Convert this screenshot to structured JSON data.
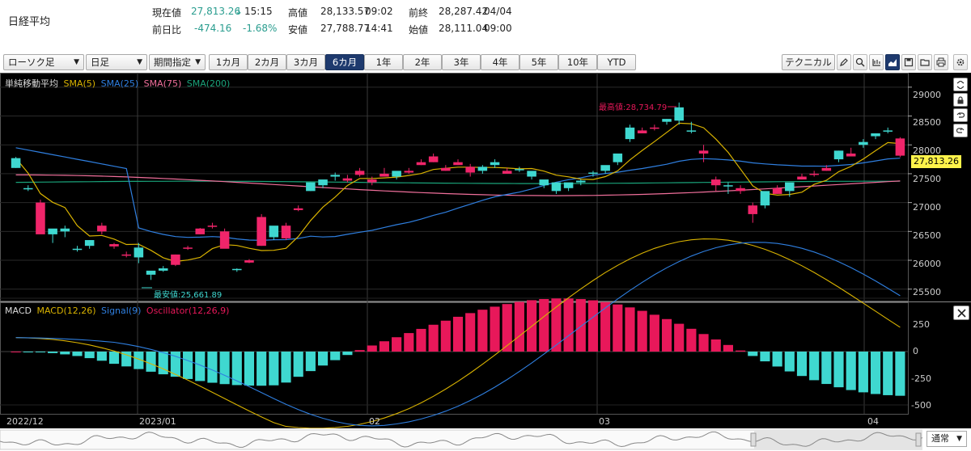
{
  "header": {
    "title": "日経平均",
    "current_label": "現在値",
    "current_value": "27,813.26",
    "current_arrow": "↓",
    "current_time": "15:15",
    "change_label": "前日比",
    "change_value": "-474.16",
    "change_pct": "-1.68%",
    "high_label": "高値",
    "high_value": "28,133.57",
    "high_time": "09:02",
    "low_label": "安値",
    "low_value": "27,788.77",
    "low_time": "14:41",
    "prev_label": "前終",
    "prev_value": "28,287.42",
    "prev_date": "04/04",
    "open_label": "始値",
    "open_value": "28,111.04",
    "open_time": "09:00"
  },
  "toolbar": {
    "chart_type": "ローソク足",
    "interval": "日足",
    "period_select": "期間指定",
    "ranges": [
      "1カ月",
      "2カ月",
      "3カ月",
      "6カ月",
      "1年",
      "2年",
      "3年",
      "4年",
      "5年",
      "10年",
      "YTD"
    ],
    "active_range": "6カ月",
    "technical": "テクニカル",
    "icons": [
      "pencil-icon",
      "zoom-icon",
      "bar-chart-icon",
      "area-chart-icon",
      "save-icon",
      "folder-icon",
      "print-icon",
      "settings-icon"
    ]
  },
  "price_panel": {
    "legend_title": "単純移動平均",
    "legend": [
      {
        "name": "SMA(5)",
        "color": "#d9b300"
      },
      {
        "name": "SMA(25)",
        "color": "#2f7fe0"
      },
      {
        "name": "SMA(75)",
        "color": "#f06f9b"
      },
      {
        "name": "SMA(200)",
        "color": "#1aa37a"
      }
    ],
    "y_ticks": [
      "29000",
      "28500",
      "28000",
      "27500",
      "27000",
      "26500",
      "26000",
      "25500"
    ],
    "max_label": "最高値:28,734.79",
    "min_label": "最安値:25,661.89",
    "last_price_tag": "27,813.26"
  },
  "macd_panel": {
    "legend_title": "MACD",
    "legend": [
      {
        "name": "MACD(12,26)",
        "color": "#d9b300"
      },
      {
        "name": "Signal(9)",
        "color": "#2f7fe0"
      },
      {
        "name": "Oscillator(12,26,9)",
        "color": "#e8185a"
      }
    ],
    "y_ticks": [
      "250",
      "0",
      "-250",
      "-500"
    ]
  },
  "x_axis": [
    "2022/12",
    "2023/01",
    "02",
    "03",
    "04"
  ],
  "navigator": {
    "mode": "通常"
  },
  "chart_data": {
    "type": "candlestick",
    "x": [
      "2022/12",
      "2023/01",
      "02",
      "03",
      "04"
    ],
    "ylim": [
      25300,
      29250
    ],
    "candles_ohlc": [
      [
        27600,
        27790,
        27600,
        27770
      ],
      [
        27250,
        27300,
        27200,
        27250
      ],
      [
        27000,
        27050,
        26500,
        26450
      ],
      [
        26450,
        26500,
        26300,
        26550
      ],
      [
        26500,
        26600,
        26400,
        26550
      ],
      [
        26200,
        26250,
        26150,
        26200
      ],
      [
        26250,
        26350,
        26200,
        26350
      ],
      [
        26600,
        26650,
        26450,
        26500
      ],
      [
        26280,
        26300,
        26200,
        26240
      ],
      [
        26100,
        26150,
        26050,
        26080
      ],
      [
        26050,
        26300,
        25950,
        26220
      ],
      [
        25750,
        25800,
        25660,
        25820
      ],
      [
        25820,
        25900,
        25800,
        25860
      ],
      [
        26100,
        26100,
        25900,
        25920
      ],
      [
        26220,
        26250,
        26180,
        26200
      ],
      [
        26550,
        26560,
        26450,
        26450
      ],
      [
        26600,
        26650,
        26550,
        26580
      ],
      [
        26500,
        26550,
        26350,
        26200
      ],
      [
        25830,
        25860,
        25800,
        25850
      ],
      [
        26000,
        26020,
        25950,
        25960
      ],
      [
        26750,
        26800,
        26250,
        26250
      ],
      [
        26400,
        26450,
        26350,
        26600
      ],
      [
        26600,
        26650,
        26350,
        26380
      ],
      [
        26900,
        26950,
        26850,
        26870
      ],
      [
        27200,
        27350,
        27200,
        27350
      ],
      [
        27300,
        27350,
        27250,
        27400
      ],
      [
        27450,
        27520,
        27380,
        27480
      ],
      [
        27420,
        27480,
        27350,
        27380
      ],
      [
        27550,
        27600,
        27450,
        27480
      ],
      [
        27400,
        27450,
        27300,
        27350
      ],
      [
        27500,
        27600,
        27450,
        27450
      ],
      [
        27450,
        27500,
        27400,
        27550
      ],
      [
        27550,
        27600,
        27500,
        27520
      ],
      [
        27700,
        27750,
        27650,
        27650
      ],
      [
        27800,
        27850,
        27700,
        27700
      ],
      [
        27600,
        27650,
        27550,
        27550
      ],
      [
        27700,
        27750,
        27650,
        27650
      ],
      [
        27620,
        27670,
        27450,
        27520
      ],
      [
        27550,
        27650,
        27500,
        27620
      ],
      [
        27650,
        27750,
        27600,
        27700
      ],
      [
        27550,
        27600,
        27500,
        27500
      ],
      [
        27560,
        27620,
        27530,
        27580
      ],
      [
        27450,
        27500,
        27400,
        27550
      ],
      [
        27300,
        27350,
        27250,
        27400
      ],
      [
        27200,
        27250,
        27150,
        27350
      ],
      [
        27250,
        27300,
        27200,
        27350
      ],
      [
        27350,
        27400,
        27300,
        27380
      ],
      [
        27500,
        27550,
        27450,
        27520
      ],
      [
        27550,
        27600,
        27500,
        27650
      ],
      [
        27700,
        27750,
        27650,
        27850
      ],
      [
        28100,
        28350,
        28050,
        28300
      ],
      [
        28250,
        28300,
        28200,
        28200
      ],
      [
        28300,
        28350,
        28250,
        28280
      ],
      [
        28400,
        28450,
        28350,
        28450
      ],
      [
        28420,
        28734,
        28350,
        28650
      ],
      [
        28250,
        28400,
        28200,
        28250
      ],
      [
        27900,
        28000,
        27700,
        27850
      ],
      [
        27400,
        27450,
        27200,
        27300
      ],
      [
        27300,
        27350,
        27150,
        27300
      ],
      [
        27250,
        27300,
        27150,
        27200
      ],
      [
        26950,
        27000,
        26650,
        26800
      ],
      [
        26950,
        27000,
        26900,
        27200
      ],
      [
        27250,
        27300,
        27150,
        27150
      ],
      [
        27200,
        27250,
        27100,
        27350
      ],
      [
        27450,
        27500,
        27400,
        27400
      ],
      [
        27500,
        27550,
        27450,
        27480
      ],
      [
        27600,
        27650,
        27550,
        27550
      ],
      [
        27750,
        27900,
        27700,
        27900
      ],
      [
        27850,
        27950,
        27800,
        27800
      ],
      [
        28000,
        28100,
        27950,
        28050
      ],
      [
        28150,
        28200,
        28100,
        28200
      ],
      [
        28250,
        28300,
        28200,
        28250
      ],
      [
        28111,
        28133,
        27788,
        27813
      ]
    ]
  }
}
